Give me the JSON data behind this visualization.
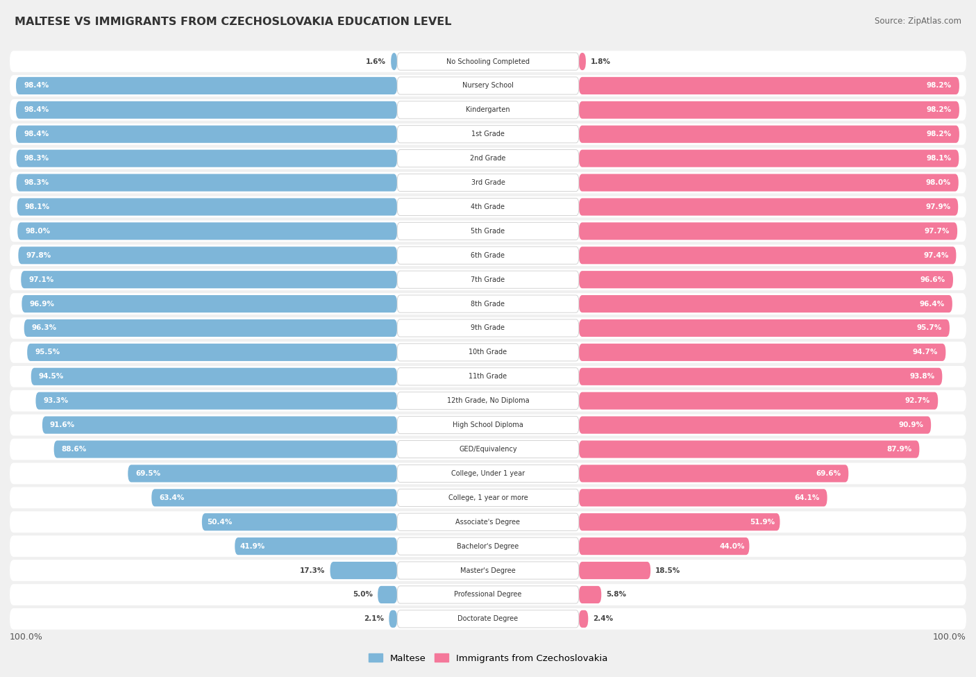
{
  "title": "MALTESE VS IMMIGRANTS FROM CZECHOSLOVAKIA EDUCATION LEVEL",
  "source": "Source: ZipAtlas.com",
  "categories": [
    "No Schooling Completed",
    "Nursery School",
    "Kindergarten",
    "1st Grade",
    "2nd Grade",
    "3rd Grade",
    "4th Grade",
    "5th Grade",
    "6th Grade",
    "7th Grade",
    "8th Grade",
    "9th Grade",
    "10th Grade",
    "11th Grade",
    "12th Grade, No Diploma",
    "High School Diploma",
    "GED/Equivalency",
    "College, Under 1 year",
    "College, 1 year or more",
    "Associate's Degree",
    "Bachelor's Degree",
    "Master's Degree",
    "Professional Degree",
    "Doctorate Degree"
  ],
  "maltese": [
    1.6,
    98.4,
    98.4,
    98.4,
    98.3,
    98.3,
    98.1,
    98.0,
    97.8,
    97.1,
    96.9,
    96.3,
    95.5,
    94.5,
    93.3,
    91.6,
    88.6,
    69.5,
    63.4,
    50.4,
    41.9,
    17.3,
    5.0,
    2.1
  ],
  "czech": [
    1.8,
    98.2,
    98.2,
    98.2,
    98.1,
    98.0,
    97.9,
    97.7,
    97.4,
    96.6,
    96.4,
    95.7,
    94.7,
    93.8,
    92.7,
    90.9,
    87.9,
    69.6,
    64.1,
    51.9,
    44.0,
    18.5,
    5.8,
    2.4
  ],
  "maltese_color": "#7EB6D9",
  "czech_color": "#F4789A",
  "bg_color": "#F0F0F0",
  "bar_bg_color": "#FFFFFF",
  "legend_maltese": "Maltese",
  "legend_czech": "Immigrants from Czechoslovakia",
  "max_val": 100.0,
  "fig_width": 14.06,
  "fig_height": 9.75,
  "dpi": 100
}
